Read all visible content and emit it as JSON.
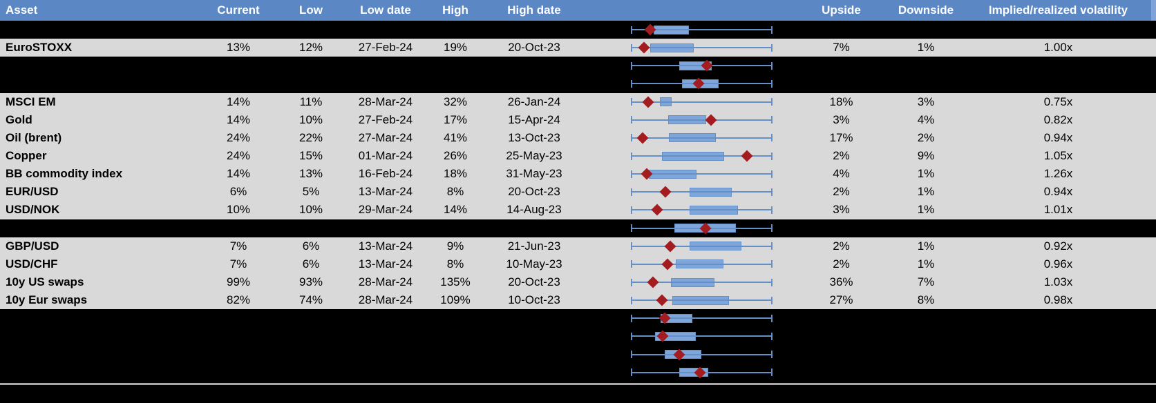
{
  "header": {
    "asset": "Asset",
    "current": "Current",
    "low": "Low",
    "low_date": "Low date",
    "high": "High",
    "high_date": "High date",
    "upside": "Upside",
    "downside": "Downside",
    "implied": "Implied/realized volatility"
  },
  "colors": {
    "header_bg": "#5b87c4",
    "header_end_strip": "#7fa3d8",
    "row_gray": "#d9d9d9",
    "row_black": "#000000",
    "plot_blue": "#7ea6db",
    "line_blue": "#6590c7",
    "marker_red": "#a31d20",
    "divider_gray": "#a6a6a6"
  },
  "chart_data": {
    "type": "table",
    "note": "Each row contains a horizontal box-and-whisker plot (shared whisker scale 0-100) with a red diamond marking the current level; plot values are percents of the whisker span.",
    "rows": [
      {
        "type": "spacer",
        "plot": {
          "box_start": 16.1,
          "box_end": 41.0,
          "marker": 13.7
        }
      },
      {
        "type": "data",
        "asset": "EuroSTOXX",
        "current": "13%",
        "low": "12%",
        "low_date": "27-Feb-24",
        "high": "19%",
        "high_date": "20-Oct-23",
        "upside": "7%",
        "downside": "1%",
        "vol": "1.00x",
        "plot": {
          "box_start": 13.7,
          "box_end": 44.4,
          "marker": 9.3
        }
      },
      {
        "type": "spacer",
        "plot": {
          "box_start": 34.1,
          "box_end": 57.1,
          "marker": 53.5
        }
      },
      {
        "type": "spacer",
        "plot": {
          "box_start": 36.0,
          "box_end": 62.0,
          "marker": 47.7
        }
      },
      {
        "type": "data",
        "asset": "MSCI EM",
        "current": "14%",
        "low": "11%",
        "low_date": "28-Mar-24",
        "high": "32%",
        "high_date": "26-Jan-24",
        "upside": "18%",
        "downside": "3%",
        "vol": "0.75x",
        "plot": {
          "box_start": 20.5,
          "box_end": 28.8,
          "marker": 12.0
        }
      },
      {
        "type": "data",
        "asset": "Gold",
        "current": "14%",
        "low": "10%",
        "low_date": "27-Feb-24",
        "high": "17%",
        "high_date": "15-Apr-24",
        "upside": "3%",
        "downside": "4%",
        "vol": "0.82x",
        "plot": {
          "box_start": 26.2,
          "box_end": 53.0,
          "marker": 56.7
        }
      },
      {
        "type": "data",
        "asset": "Oil (brent)",
        "current": "24%",
        "low": "22%",
        "low_date": "27-Mar-24",
        "high": "41%",
        "high_date": "13-Oct-23",
        "upside": "17%",
        "downside": "2%",
        "vol": "0.94x",
        "plot": {
          "box_start": 26.7,
          "box_end": 60.0,
          "marker": 8.3
        }
      },
      {
        "type": "data",
        "asset": "Copper",
        "current": "24%",
        "low": "15%",
        "low_date": "01-Mar-24",
        "high": "26%",
        "high_date": "25-May-23",
        "upside": "2%",
        "downside": "9%",
        "vol": "1.05x",
        "plot": {
          "box_start": 22.0,
          "box_end": 65.7,
          "marker": 82.0
        }
      },
      {
        "type": "data",
        "asset": "BB commodity index",
        "current": "14%",
        "low": "13%",
        "low_date": "16-Feb-24",
        "high": "18%",
        "high_date": "31-May-23",
        "upside": "4%",
        "downside": "1%",
        "vol": "1.26x",
        "plot": {
          "box_start": 12.7,
          "box_end": 46.3,
          "marker": 11.1
        }
      },
      {
        "type": "data",
        "asset": "EUR/USD",
        "current": "6%",
        "low": "5%",
        "low_date": "13-Mar-24",
        "high": "8%",
        "high_date": "20-Oct-23",
        "upside": "2%",
        "downside": "1%",
        "vol": "0.94x",
        "plot": {
          "box_start": 41.5,
          "box_end": 71.2,
          "marker": 24.2
        }
      },
      {
        "type": "data",
        "asset": "USD/NOK",
        "current": "10%",
        "low": "10%",
        "low_date": "29-Mar-24",
        "high": "14%",
        "high_date": "14-Aug-23",
        "upside": "3%",
        "downside": "1%",
        "vol": "1.01x",
        "plot": {
          "box_start": 41.5,
          "box_end": 75.6,
          "marker": 18.5
        }
      },
      {
        "type": "spacer",
        "plot": {
          "box_start": 30.7,
          "box_end": 74.0,
          "marker": 52.7
        }
      },
      {
        "type": "data",
        "asset": "GBP/USD",
        "current": "7%",
        "low": "6%",
        "low_date": "13-Mar-24",
        "high": "9%",
        "high_date": "21-Jun-23",
        "upside": "2%",
        "downside": "1%",
        "vol": "0.92x",
        "plot": {
          "box_start": 41.3,
          "box_end": 78.0,
          "marker": 28.0
        }
      },
      {
        "type": "data",
        "asset": "USD/CHF",
        "current": "7%",
        "low": "6%",
        "low_date": "13-Mar-24",
        "high": "8%",
        "high_date": "10-May-23",
        "upside": "2%",
        "downside": "1%",
        "vol": "0.96x",
        "plot": {
          "box_start": 31.7,
          "box_end": 65.4,
          "marker": 25.9
        }
      },
      {
        "type": "data",
        "asset": "10y US swaps",
        "current": "99%",
        "low": "93%",
        "low_date": "28-Mar-24",
        "high": "135%",
        "high_date": "20-Oct-23",
        "upside": "36%",
        "downside": "7%",
        "vol": "1.03x",
        "plot": {
          "box_start": 28.3,
          "box_end": 59.0,
          "marker": 15.6
        }
      },
      {
        "type": "data",
        "asset": "10y Eur swaps",
        "current": "82%",
        "low": "74%",
        "low_date": "28-Mar-24",
        "high": "109%",
        "high_date": "10-Oct-23",
        "upside": "27%",
        "downside": "8%",
        "vol": "0.98x",
        "plot": {
          "box_start": 29.1,
          "box_end": 69.3,
          "marker": 22.0
        }
      },
      {
        "type": "spacer",
        "plot": {
          "box_start": 20.8,
          "box_end": 43.3,
          "marker": 24.0
        }
      },
      {
        "type": "spacer",
        "plot": {
          "box_start": 17.2,
          "box_end": 46.0,
          "marker": 22.6
        }
      },
      {
        "type": "spacer",
        "plot": {
          "box_start": 23.7,
          "box_end": 49.8,
          "marker": 34.3
        }
      },
      {
        "type": "spacer",
        "plot": {
          "box_start": 34.3,
          "box_end": 54.6,
          "marker": 48.9
        }
      }
    ]
  }
}
